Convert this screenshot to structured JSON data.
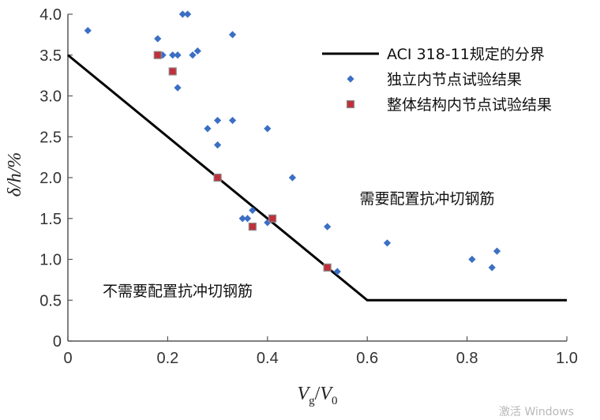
{
  "chart_data": {
    "type": "scatter",
    "xlabel": "V",
    "xlabel_sub1": "g",
    "xlabel_slash": "/",
    "xlabel_2": "V",
    "xlabel_sub2": "0",
    "ylabel": "δ/h/%",
    "xlim": [
      0,
      1.0
    ],
    "ylim": [
      0,
      4.0
    ],
    "x_ticks": [
      0,
      0.2,
      0.4,
      0.6,
      0.8,
      1.0
    ],
    "x_tick_labels": [
      "0",
      "0.2",
      "0.4",
      "0.6",
      "0.8",
      "1.0"
    ],
    "y_ticks": [
      0,
      0.5,
      1.0,
      1.5,
      2.0,
      2.5,
      3.0,
      3.5,
      4.0
    ],
    "y_tick_labels": [
      "0",
      "0.5",
      "1.0",
      "1.5",
      "2.0",
      "2.5",
      "3.0",
      "3.5",
      "4.0"
    ],
    "series": [
      {
        "name": "ACI 318-11规定的分界",
        "kind": "line",
        "color": "#000000",
        "points": [
          [
            0,
            3.5
          ],
          [
            0.6,
            0.5
          ],
          [
            1.0,
            0.5
          ]
        ]
      },
      {
        "name": "独立内节点试验结果",
        "kind": "diamond",
        "color": "#3b6fc4",
        "points": [
          [
            0.04,
            3.8
          ],
          [
            0.18,
            3.7
          ],
          [
            0.19,
            3.5
          ],
          [
            0.21,
            3.5
          ],
          [
            0.22,
            3.5
          ],
          [
            0.22,
            3.1
          ],
          [
            0.23,
            4.0
          ],
          [
            0.24,
            4.0
          ],
          [
            0.25,
            3.5
          ],
          [
            0.26,
            3.55
          ],
          [
            0.33,
            3.75
          ],
          [
            0.28,
            2.6
          ],
          [
            0.3,
            2.7
          ],
          [
            0.33,
            2.7
          ],
          [
            0.3,
            2.4
          ],
          [
            0.4,
            2.6
          ],
          [
            0.45,
            2.0
          ],
          [
            0.35,
            1.5
          ],
          [
            0.36,
            1.5
          ],
          [
            0.37,
            1.6
          ],
          [
            0.4,
            1.45
          ],
          [
            0.52,
            1.4
          ],
          [
            0.54,
            0.85
          ],
          [
            0.64,
            1.2
          ],
          [
            0.81,
            1.0
          ],
          [
            0.85,
            0.9
          ],
          [
            0.86,
            1.1
          ]
        ]
      },
      {
        "name": "整体结构内节点试验结果",
        "kind": "square",
        "color": "#c0303a",
        "points": [
          [
            0.18,
            3.5
          ],
          [
            0.21,
            3.3
          ],
          [
            0.3,
            2.0
          ],
          [
            0.37,
            1.4
          ],
          [
            0.41,
            1.5
          ],
          [
            0.52,
            0.9
          ]
        ]
      }
    ],
    "legend_position": "top-right",
    "annotations": [
      {
        "text": "需要配置抗冲切钢筋",
        "x": 0.72,
        "y": 1.75
      },
      {
        "text": "不需要配置抗冲切钢筋",
        "x": 0.22,
        "y": 0.62
      }
    ]
  },
  "watermark": "激活 Windows"
}
